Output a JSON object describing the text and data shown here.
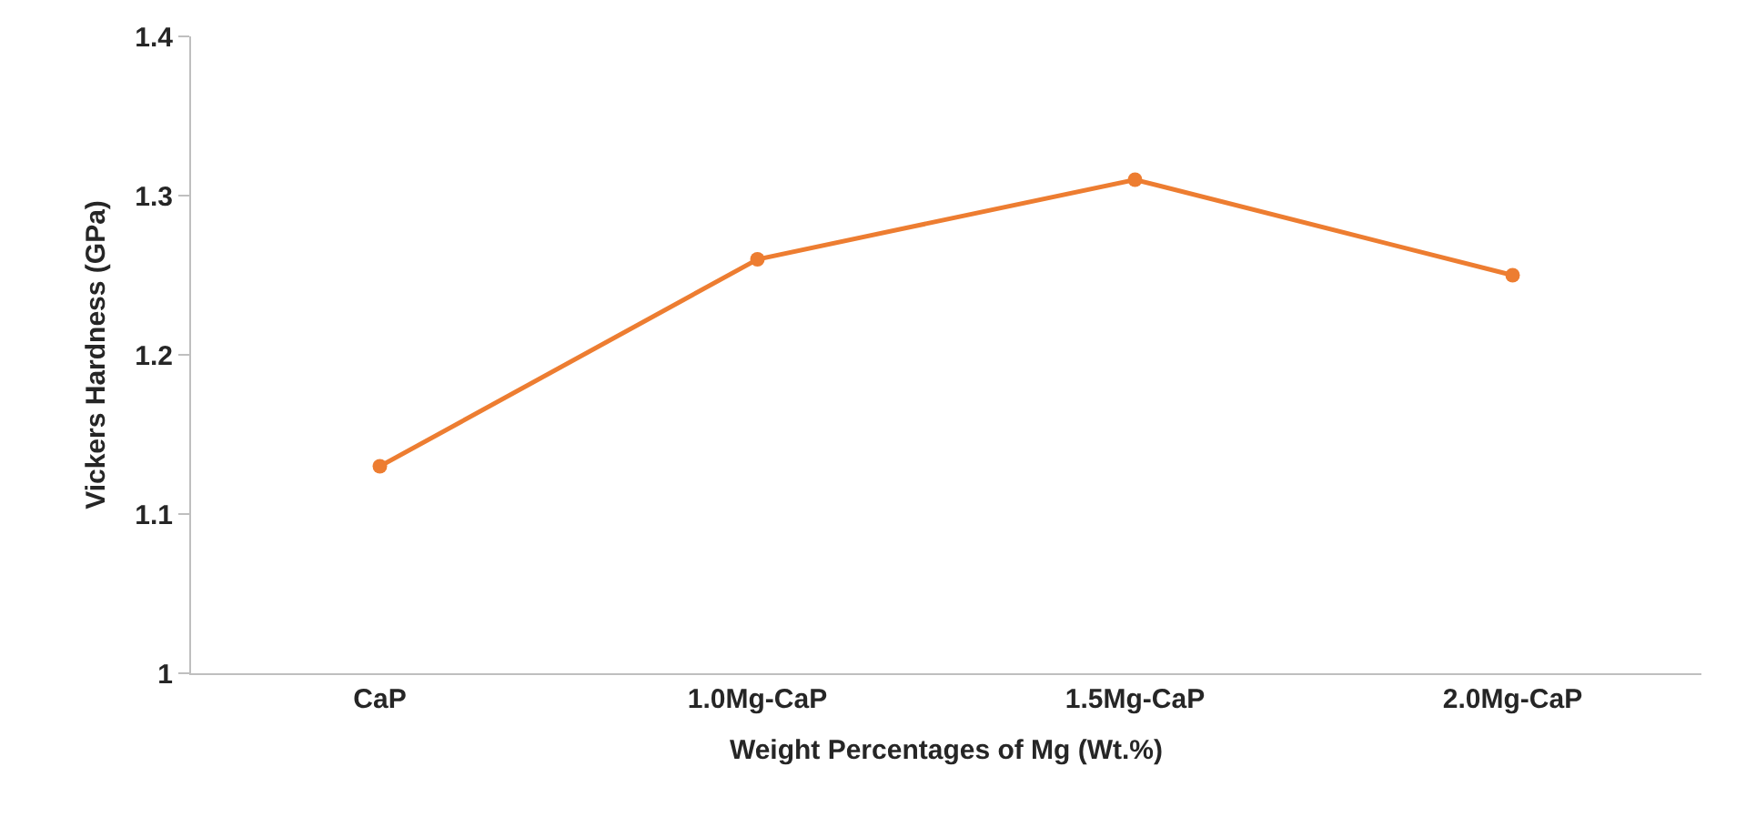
{
  "chart_data": {
    "type": "line",
    "xlabel": "Weight Percentages of Mg (Wt.%)",
    "ylabel": "Vickers Hardness (GPa)",
    "categories": [
      "CaP",
      "1.0Mg-CaP",
      "1.5Mg-CaP",
      "2.0Mg-CaP"
    ],
    "series": [
      {
        "color": "#ed7d31",
        "values": [
          1.13,
          1.26,
          1.31,
          1.25
        ]
      }
    ],
    "ylim": [
      1,
      1.4
    ],
    "yticks": [
      1,
      1.1,
      1.2,
      1.3,
      1.4
    ],
    "grid": false,
    "marker": "circle",
    "line_style": "solid"
  }
}
